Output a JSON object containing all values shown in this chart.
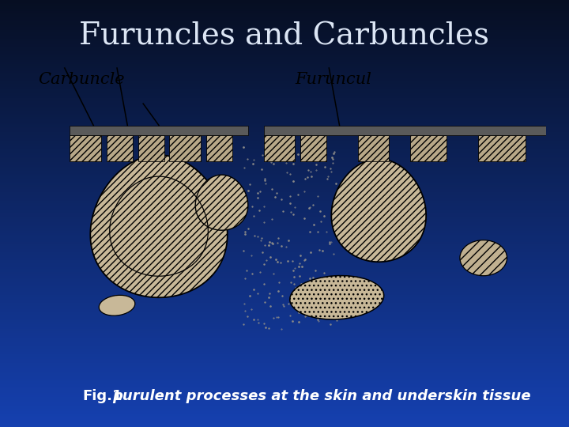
{
  "title": "Furuncles and Carbuncles",
  "title_color": "#dce6f5",
  "title_fontsize": 28,
  "caption_bold": "Fig.1",
  "caption_italic": " purulent processes at the skin and underskin tissue",
  "caption_fontsize": 13,
  "caption_color": "white",
  "bg_top_color": "#060e22",
  "bg_mid_color": "#0d2060",
  "bg_bottom_color": "#1540b0",
  "image_bg": "white",
  "label_carbuncle": "Carbuncle",
  "label_furuncul": "Furuncul",
  "label_fontsize": 15
}
